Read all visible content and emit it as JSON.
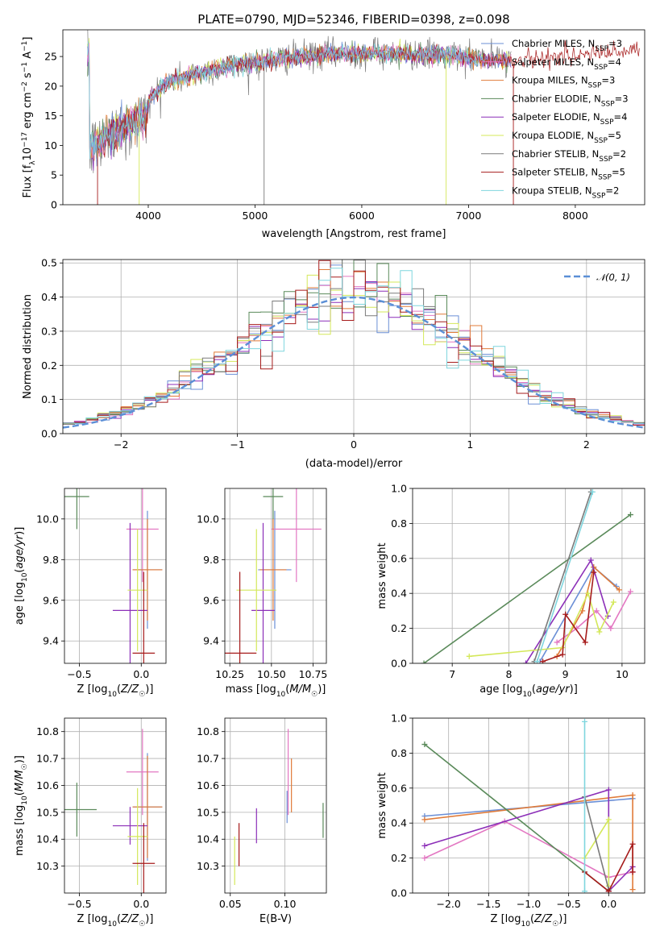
{
  "colors": {
    "Chabrier MILES": "#6b8fd6",
    "Salpeter MILES": "#e377c2",
    "Kroupa MILES": "#e07b39",
    "Chabrier ELODIE": "#5a8a5a",
    "Salpeter ELODIE": "#8c2fb8",
    "Kroupa ELODIE": "#d4e85a",
    "Chabrier STELIB": "#7a7a7a",
    "Salpeter STELIB": "#a61b1b",
    "Kroupa STELIB": "#7fd6de"
  },
  "chart_data": [
    {
      "id": "spectrum",
      "type": "line",
      "title": "PLATE=0790, MJD=52346, FIBERID=0398, z=0.098",
      "xlabel": "wavelength [Angstrom, rest frame]",
      "ylabel": "Flux [f_λ10^-17 erg cm^-2 s^-1 A^-1]",
      "xlim": [
        3200,
        8650
      ],
      "ylim": [
        0,
        29.5
      ],
      "xticks": [
        4000,
        5000,
        6000,
        7000,
        8000
      ],
      "yticks": [
        0,
        5,
        10,
        15,
        20,
        25
      ],
      "grid": false,
      "legend_position": "right",
      "series": [
        {
          "name": "Chabrier MILES",
          "nssp": "3"
        },
        {
          "name": "Salpeter MILES",
          "nssp": "4"
        },
        {
          "name": "Kroupa MILES",
          "nssp": "3"
        },
        {
          "name": "Chabrier ELODIE",
          "nssp": "3"
        },
        {
          "name": "Salpeter ELODIE",
          "nssp": "4"
        },
        {
          "name": "Kroupa ELODIE",
          "nssp": "5"
        },
        {
          "name": "Chabrier STELIB",
          "nssp": "2"
        },
        {
          "name": "Salpeter STELIB",
          "nssp": "5"
        },
        {
          "name": "Kroupa STELIB",
          "nssp": "2"
        }
      ],
      "continuum": {
        "x": [
          3450,
          3550,
          3650,
          3750,
          3850,
          3950,
          4000,
          4100,
          4200,
          4400,
          4600,
          4800,
          5000,
          5200,
          5400,
          5600,
          5800,
          6000,
          6200,
          6400,
          6600,
          6800,
          7000,
          7200,
          7400,
          7600,
          7800,
          8000,
          8200,
          8400,
          8600
        ],
        "y": [
          10.5,
          11.5,
          13,
          14,
          14.8,
          15.5,
          17.5,
          19.5,
          20.8,
          21.8,
          22.8,
          23.5,
          24,
          24.5,
          25,
          25.3,
          25.5,
          25.6,
          25.6,
          25.5,
          25.3,
          25.2,
          24.8,
          24.5,
          24.3,
          24.5,
          25,
          25.2,
          25.5,
          25.7,
          25.9
        ]
      }
    },
    {
      "id": "residuals",
      "type": "histogram",
      "xlabel": "(data-model)/error",
      "ylabel": "Normed distribution",
      "xlim": [
        -2.5,
        2.5
      ],
      "ylim": [
        0,
        0.51
      ],
      "xticks": [
        -2,
        -1,
        0,
        1,
        2
      ],
      "yticks": [
        0.0,
        0.1,
        0.2,
        0.3,
        0.4,
        0.5
      ],
      "grid": true,
      "legend": "𝒩(0, 1)",
      "legend_position": "top-right"
    },
    {
      "id": "age_vs_Z",
      "type": "errorbar",
      "xlabel": "Z [log10(Z/Z☉)]",
      "ylabel": "age  [log10(age/yr)]",
      "xlim": [
        -0.62,
        0.2
      ],
      "ylim": [
        9.29,
        10.15
      ],
      "xticks": [
        -0.5,
        0.0
      ],
      "yticks": [
        9.4,
        9.6,
        9.8,
        10.0
      ],
      "grid": true,
      "points": [
        {
          "model": "Chabrier ELODIE",
          "x": -0.52,
          "xerr": 0.1,
          "y": 10.11,
          "yerr": 0.16
        },
        {
          "model": "Chabrier MILES",
          "x": 0.05,
          "xerr": 0.12,
          "y": 9.75,
          "yerr": 0.29
        },
        {
          "model": "Salpeter MILES",
          "x": 0.01,
          "xerr": 0.13,
          "y": 9.95,
          "yerr": 0.26
        },
        {
          "model": "Kroupa MILES",
          "x": 0.05,
          "xerr": 0.12,
          "y": 9.75,
          "yerr": 0.25
        },
        {
          "model": "Salpeter ELODIE",
          "x": -0.09,
          "xerr": 0.14,
          "y": 9.55,
          "yerr": 0.43
        },
        {
          "model": "Kroupa ELODIE",
          "x": -0.03,
          "xerr": 0.08,
          "y": 9.65,
          "yerr": 0.3
        },
        {
          "model": "Salpeter STELIB",
          "x": 0.02,
          "xerr": 0.09,
          "y": 9.34,
          "yerr": 0.4
        }
      ]
    },
    {
      "id": "age_vs_mass",
      "type": "errorbar",
      "xlabel": "mass [log10(M/M☉)]",
      "ylabel": "",
      "xlim": [
        10.22,
        10.83
      ],
      "ylim": [
        9.29,
        10.15
      ],
      "xticks": [
        10.25,
        10.5,
        10.75
      ],
      "yticks": [
        9.4,
        9.6,
        9.8,
        10.0
      ],
      "grid": true,
      "points": [
        {
          "model": "Chabrier ELODIE",
          "x": 10.51,
          "xerr": 0.06,
          "y": 10.11,
          "yerr": 0.16
        },
        {
          "model": "Chabrier MILES",
          "x": 10.52,
          "xerr": 0.1,
          "y": 9.75,
          "yerr": 0.29
        },
        {
          "model": "Salpeter MILES",
          "x": 10.65,
          "xerr": 0.15,
          "y": 9.95,
          "yerr": 0.26
        },
        {
          "model": "Kroupa MILES",
          "x": 10.51,
          "xerr": 0.08,
          "y": 9.75,
          "yerr": 0.25
        },
        {
          "model": "Salpeter ELODIE",
          "x": 10.45,
          "xerr": 0.07,
          "y": 9.55,
          "yerr": 0.43
        },
        {
          "model": "Kroupa ELODIE",
          "x": 10.41,
          "xerr": 0.12,
          "y": 9.65,
          "yerr": 0.3
        },
        {
          "model": "Salpeter STELIB",
          "x": 10.31,
          "xerr": 0.1,
          "y": 9.34,
          "yerr": 0.4
        }
      ]
    },
    {
      "id": "weight_vs_age",
      "type": "line",
      "xlabel": "age  [log10(age/yr)]",
      "ylabel": "mass weight",
      "xlim": [
        6.3,
        10.4
      ],
      "ylim": [
        0,
        1.0
      ],
      "xticks": [
        7,
        8,
        9,
        10
      ],
      "yticks": [
        0.0,
        0.2,
        0.4,
        0.6,
        0.8,
        1.0
      ],
      "grid": true,
      "series": [
        {
          "model": "Chabrier MILES",
          "x": [
            8.55,
            9.5,
            9.9
          ],
          "y": [
            0.01,
            0.55,
            0.44
          ]
        },
        {
          "model": "Salpeter MILES",
          "x": [
            8.85,
            9.2,
            9.55,
            9.8,
            10.15
          ],
          "y": [
            0.12,
            0.2,
            0.3,
            0.2,
            0.41
          ]
        },
        {
          "model": "Kroupa MILES",
          "x": [
            8.85,
            9.3,
            9.5,
            9.95
          ],
          "y": [
            0.04,
            0.3,
            0.55,
            0.42
          ]
        },
        {
          "model": "Chabrier ELODIE",
          "x": [
            6.5,
            10.15
          ],
          "y": [
            0.0,
            0.85
          ]
        },
        {
          "model": "Salpeter ELODIE",
          "x": [
            8.3,
            9.45,
            9.75
          ],
          "y": [
            0.0,
            0.59,
            0.27
          ]
        },
        {
          "model": "Kroupa ELODIE",
          "x": [
            7.3,
            8.95,
            9.4,
            9.6,
            9.85
          ],
          "y": [
            0.04,
            0.09,
            0.4,
            0.18,
            0.35
          ]
        },
        {
          "model": "Chabrier STELIB",
          "x": [
            8.45,
            9.45
          ],
          "y": [
            0.01,
            0.98
          ]
        },
        {
          "model": "Salpeter STELIB",
          "x": [
            8.6,
            8.95,
            9.0,
            9.35,
            9.5
          ],
          "y": [
            0.01,
            0.05,
            0.28,
            0.12,
            0.52
          ]
        },
        {
          "model": "Kroupa STELIB",
          "x": [
            8.5,
            9.48
          ],
          "y": [
            0.01,
            0.98
          ]
        }
      ]
    },
    {
      "id": "mass_vs_Z",
      "type": "errorbar",
      "xlabel": "Z [log10(Z/Z☉)]",
      "ylabel": "mass [log10(M/M☉)]",
      "xlim": [
        -0.62,
        0.2
      ],
      "ylim": [
        10.2,
        10.85
      ],
      "xticks": [
        -0.5,
        0.0
      ],
      "yticks": [
        10.3,
        10.4,
        10.5,
        10.6,
        10.7,
        10.8
      ],
      "grid": true,
      "points": [
        {
          "model": "Chabrier ELODIE",
          "x": -0.52,
          "xerr": 0.16,
          "y": 10.51,
          "yerr": 0.1
        },
        {
          "model": "Chabrier MILES",
          "x": 0.05,
          "xerr": 0.12,
          "y": 10.52,
          "yerr": 0.2
        },
        {
          "model": "Salpeter MILES",
          "x": 0.01,
          "xerr": 0.13,
          "y": 10.65,
          "yerr": 0.16
        },
        {
          "model": "Kroupa MILES",
          "x": 0.05,
          "xerr": 0.12,
          "y": 10.52,
          "yerr": 0.19
        },
        {
          "model": "Salpeter ELODIE",
          "x": -0.09,
          "xerr": 0.14,
          "y": 10.45,
          "yerr": 0.07
        },
        {
          "model": "Kroupa ELODIE",
          "x": -0.03,
          "xerr": 0.08,
          "y": 10.41,
          "yerr": 0.18
        },
        {
          "model": "Salpeter STELIB",
          "x": 0.02,
          "xerr": 0.09,
          "y": 10.31,
          "yerr": 0.15
        }
      ]
    },
    {
      "id": "mass_vs_EBV",
      "type": "errorbar",
      "xlabel": "E(B-V)",
      "ylabel": "",
      "xlim": [
        0.045,
        0.138
      ],
      "ylim": [
        10.2,
        10.85
      ],
      "xticks": [
        0.05,
        0.1
      ],
      "yticks": [
        10.3,
        10.4,
        10.5,
        10.6,
        10.7,
        10.8
      ],
      "grid": true,
      "points": [
        {
          "model": "Chabrier ELODIE",
          "x": 0.135,
          "y": 10.47,
          "yerr": 0.065
        },
        {
          "model": "Chabrier MILES",
          "x": 0.102,
          "y": 10.52,
          "yerr": 0.06
        },
        {
          "model": "Salpeter MILES",
          "x": 0.103,
          "y": 10.65,
          "yerr": 0.16
        },
        {
          "model": "Kroupa MILES",
          "x": 0.106,
          "y": 10.6,
          "yerr": 0.1
        },
        {
          "model": "Salpeter ELODIE",
          "x": 0.074,
          "y": 10.45,
          "yerr": 0.065
        },
        {
          "model": "Kroupa ELODIE",
          "x": 0.054,
          "y": 10.32,
          "yerr": 0.09
        },
        {
          "model": "Salpeter STELIB",
          "x": 0.058,
          "y": 10.38,
          "yerr": 0.08
        }
      ]
    },
    {
      "id": "weight_vs_Z",
      "type": "line",
      "xlabel": "Z [log10(Z/Z☉)]",
      "ylabel": "mass weight",
      "xlim": [
        -2.45,
        0.45
      ],
      "ylim": [
        0,
        1.0
      ],
      "xticks": [
        -2.0,
        -1.5,
        -1.0,
        -0.5,
        0.0
      ],
      "yticks": [
        0.0,
        0.2,
        0.4,
        0.6,
        0.8,
        1.0
      ],
      "grid": true,
      "series": [
        {
          "model": "Chabrier MILES",
          "x": [
            -2.3,
            0.3
          ],
          "y": [
            0.44,
            0.54
          ]
        },
        {
          "model": "Salpeter MILES",
          "x": [
            -2.3,
            -1.3,
            0.0,
            0.3
          ],
          "y": [
            0.2,
            0.41,
            0.09,
            0.12
          ]
        },
        {
          "model": "Kroupa MILES",
          "x": [
            -2.3,
            0.3,
            0.3
          ],
          "y": [
            0.42,
            0.56,
            0.02
          ]
        },
        {
          "model": "Chabrier ELODIE",
          "x": [
            -2.3,
            0.0
          ],
          "y": [
            0.85,
            0.01
          ]
        },
        {
          "model": "Salpeter ELODIE",
          "x": [
            -2.3,
            0.0,
            0.0,
            0.3
          ],
          "y": [
            0.27,
            0.59,
            0.01,
            0.15
          ]
        },
        {
          "model": "Kroupa ELODIE",
          "x": [
            -0.3,
            0.0,
            0.0
          ],
          "y": [
            0.2,
            0.42,
            0.04
          ]
        },
        {
          "model": "Chabrier STELIB",
          "x": [
            -0.3,
            0.0
          ],
          "y": [
            0.55,
            0.02
          ]
        },
        {
          "model": "Salpeter STELIB",
          "x": [
            -0.3,
            0.0,
            0.3,
            0.3
          ],
          "y": [
            0.12,
            0.01,
            0.28,
            0.12
          ]
        },
        {
          "model": "Kroupa STELIB",
          "x": [
            -0.3,
            -0.3
          ],
          "y": [
            0.01,
            0.98
          ]
        }
      ]
    }
  ]
}
